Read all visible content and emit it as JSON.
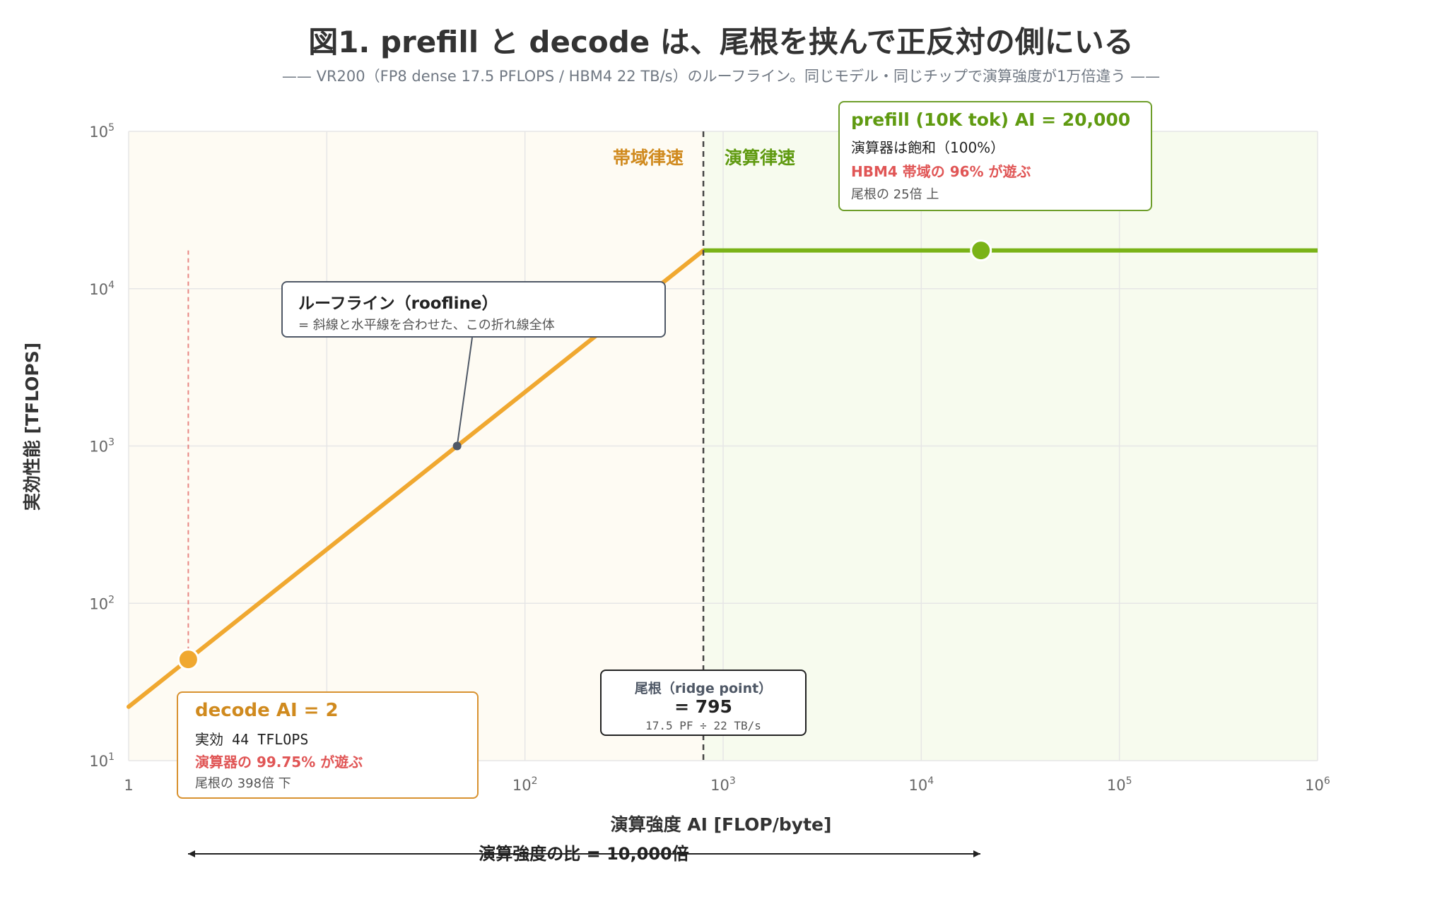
{
  "title": "図1. prefill と decode は、尾根を挟んで正反対の側にいる",
  "subtitle": "—— VR200（FP8 dense 17.5 PFLOPS / HBM4 22 TB/s）のルーフライン。同じモデル・同じチップで演算強度が1万倍違う ——",
  "chart_data": {
    "type": "line",
    "xlabel": "演算強度 AI [FLOP/byte]",
    "ylabel": "実効性能 [TFLOPS]",
    "xscale": "log",
    "yscale": "log",
    "xlim": [
      1,
      1000000
    ],
    "ylim": [
      10,
      100000
    ],
    "grid": true,
    "x_ticks": [
      {
        "base": "1",
        "exp": ""
      },
      {
        "base": "10",
        "exp": "1"
      },
      {
        "base": "10",
        "exp": "2"
      },
      {
        "base": "10",
        "exp": "3"
      },
      {
        "base": "10",
        "exp": "4"
      },
      {
        "base": "10",
        "exp": "5"
      },
      {
        "base": "10",
        "exp": "6"
      }
    ],
    "y_ticks": [
      {
        "base": "10",
        "exp": "1"
      },
      {
        "base": "10",
        "exp": "2"
      },
      {
        "base": "10",
        "exp": "3"
      },
      {
        "base": "10",
        "exp": "4"
      },
      {
        "base": "10",
        "exp": "5"
      }
    ],
    "bandwidth_tbps": 22,
    "peak_tflops": 17500,
    "ridge_point": 795,
    "region_labels": {
      "memory_bound": "帯域律速",
      "compute_bound": "演算律速"
    },
    "points": [
      {
        "name": "decode",
        "ai": 2,
        "tflops": 44,
        "color": "#f0a830"
      },
      {
        "name": "prefill",
        "ai": 20000,
        "tflops": 17500,
        "color": "#7ab317"
      }
    ],
    "colors": {
      "memory_line": "#f0a830",
      "compute_line": "#7ab317",
      "memory_bg": "#fefbf3",
      "compute_bg": "#f7fbee",
      "warn": "#e05555"
    },
    "annotations": {
      "roofline": {
        "title": "ルーフライン（roofline）",
        "desc": "= 斜線と水平線を合わせた、この折れ線全体"
      },
      "prefill": {
        "title": "prefill (10K tok) AI = 20,000",
        "line1": "演算器は飽和（100%）",
        "line2": "HBM4 帯域の 96% が遊ぶ",
        "line3": "尾根の 25倍 上"
      },
      "decode": {
        "title": "decode AI = 2",
        "line1": "実効 44 TFLOPS",
        "line2": "演算器の 99.75% が遊ぶ",
        "line3": "尾根の 398倍 下"
      },
      "ridge": {
        "title": "尾根（ridge point）",
        "value": "= 795",
        "formula": "17.5 PF ÷ 22 TB/s"
      },
      "ratio": "演算強度の比 = 10,000倍"
    }
  }
}
